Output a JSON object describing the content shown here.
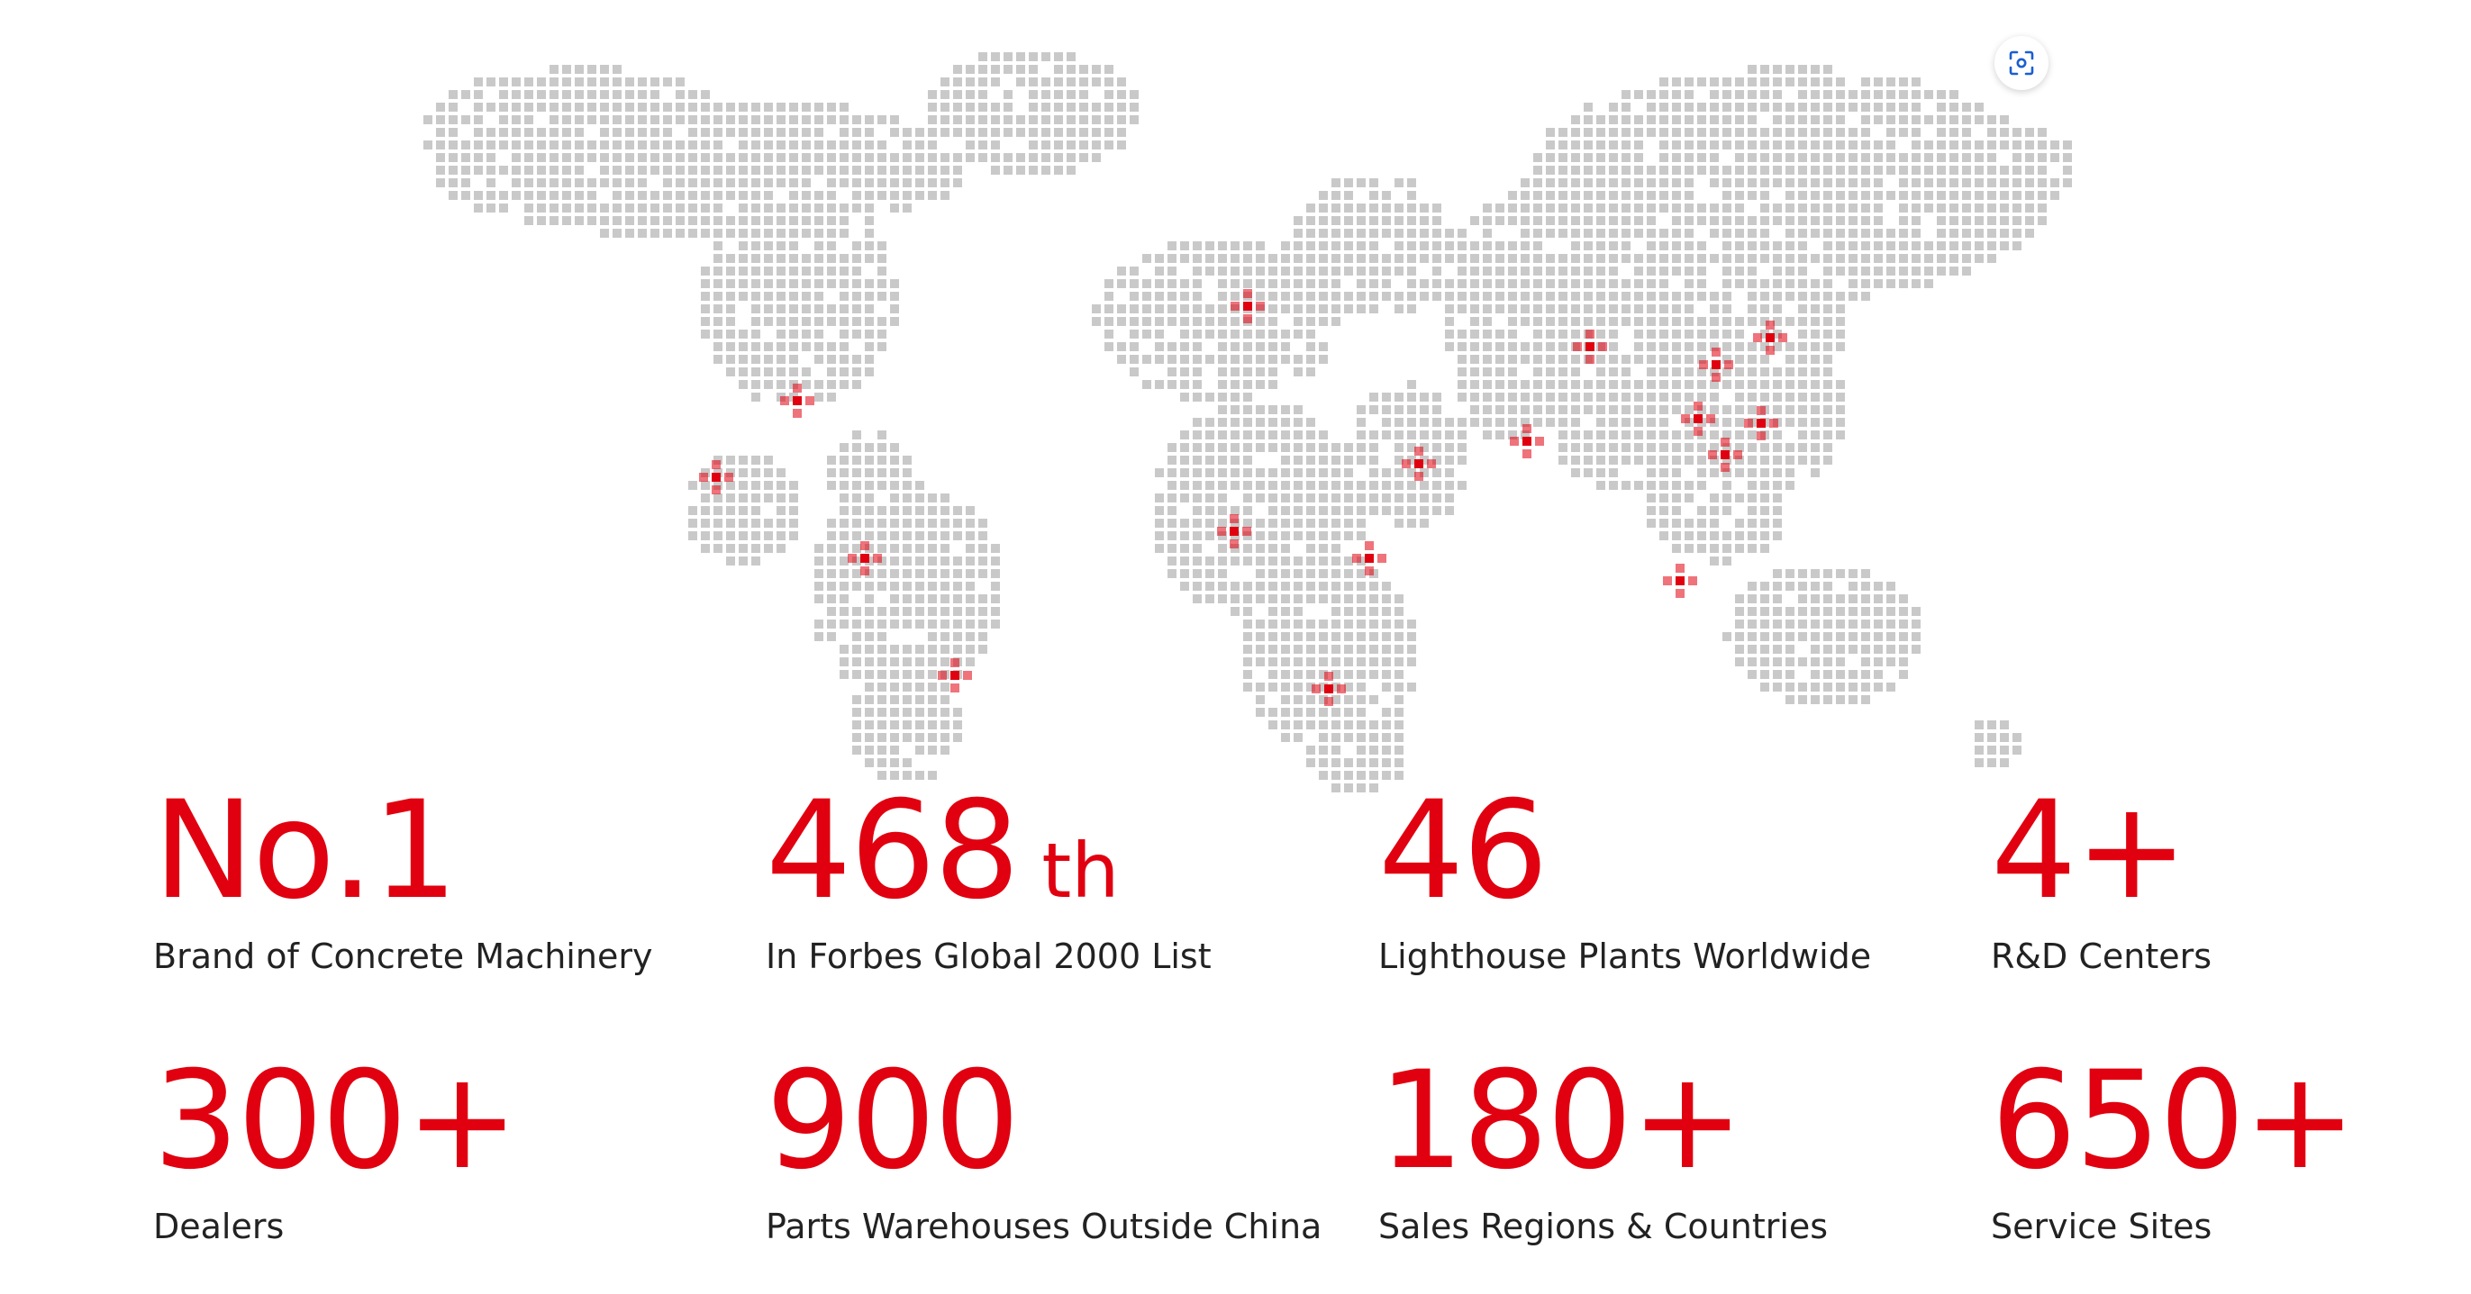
{
  "colors": {
    "accent": "#e1000f",
    "dot": "#c9c9c9",
    "text": "#222222"
  },
  "map": {
    "icon": "world-dot-map"
  },
  "scan_button": {
    "icon": "scan-icon"
  },
  "stats": [
    {
      "value": "No.1",
      "suffix": "",
      "label": "Brand of Concrete Machinery"
    },
    {
      "value": "468",
      "suffix": "th",
      "label": "In Forbes Global 2000 List"
    },
    {
      "value": "46",
      "suffix": "",
      "label": "Lighthouse Plants Worldwide"
    },
    {
      "value": "4+",
      "suffix": "",
      "label": "R&D Centers"
    },
    {
      "value": "300+",
      "suffix": "",
      "label": "Dealers"
    },
    {
      "value": "900",
      "suffix": "",
      "label": "Parts Warehouses Outside China"
    },
    {
      "value": "180+",
      "suffix": "",
      "label": "Sales Regions & Countries"
    },
    {
      "value": "650+",
      "suffix": "",
      "label": "Service Sites"
    }
  ]
}
